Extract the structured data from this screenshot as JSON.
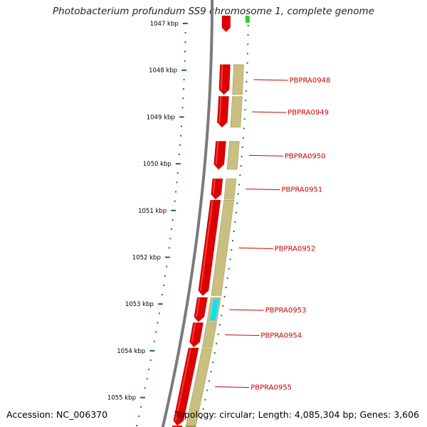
{
  "title": "Photobacterium profundum SS9 chromosome 1, complete genome",
  "accession": "Accession: NC_006370",
  "summary": "Topology: circular; Length: 4,085,304 bp; Genes: 3,606",
  "colors": {
    "forward_cds": "#dd0000",
    "feature_band": "#c8bf80",
    "highlight": "#00e5ff",
    "tick": "#1a7a1a",
    "backbone": "#7a7a7a",
    "label_line": "#cc0000",
    "top_green": "#33cc33"
  },
  "ticks": [
    {
      "label": "1047 kbp",
      "kbp": 1047
    },
    {
      "label": "1048 kbp",
      "kbp": 1048
    },
    {
      "label": "1049 kbp",
      "kbp": 1049
    },
    {
      "label": "1050 kbp",
      "kbp": 1050
    },
    {
      "label": "1051 kbp",
      "kbp": 1051
    },
    {
      "label": "1052 kbp",
      "kbp": 1052
    },
    {
      "label": "1053 kbp",
      "kbp": 1053
    },
    {
      "label": "1054 kbp",
      "kbp": 1054
    },
    {
      "label": "1055 kbp",
      "kbp": 1055
    }
  ],
  "genes": [
    {
      "label": "PBPRA0948",
      "start_kbp": 1047.88,
      "end_kbp": 1048.52
    },
    {
      "label": "PBPRA0949",
      "start_kbp": 1048.56,
      "end_kbp": 1049.22
    },
    {
      "label": "PBPRA0950",
      "start_kbp": 1049.52,
      "end_kbp": 1050.12
    },
    {
      "label": "PBPRA0951",
      "start_kbp": 1050.32,
      "end_kbp": 1050.76
    },
    {
      "label": "PBPRA0952",
      "start_kbp": 1050.78,
      "end_kbp": 1052.82
    },
    {
      "label": "PBPRA0953",
      "start_kbp": 1052.86,
      "end_kbp": 1053.38
    },
    {
      "label": "PBPRA0954",
      "start_kbp": 1053.4,
      "end_kbp": 1053.92
    },
    {
      "label": "PBPRA0955",
      "start_kbp": 1053.94,
      "end_kbp": 1055.6
    }
  ],
  "partial_top_gene": {
    "start_kbp": 1046.6,
    "end_kbp": 1047.18
  }
}
